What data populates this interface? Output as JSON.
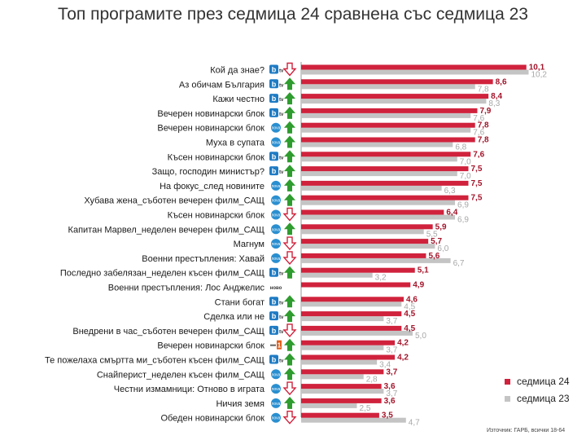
{
  "chart_data": {
    "type": "bar",
    "orientation": "horizontal",
    "title": "Топ програмите през седмица 24 сравнена със седмица 23",
    "series": [
      {
        "name": "седмица 24",
        "color": "#d0223c",
        "values": [
          10.1,
          8.6,
          8.4,
          7.9,
          7.8,
          7.8,
          7.6,
          7.5,
          7.5,
          7.5,
          6.4,
          5.9,
          5.7,
          5.6,
          5.1,
          4.9,
          4.6,
          4.5,
          4.5,
          4.2,
          4.2,
          3.7,
          3.6,
          3.6,
          3.5
        ]
      },
      {
        "name": "седмица 23",
        "color": "#c4c4c4",
        "values": [
          10.2,
          7.8,
          8.3,
          7.6,
          7.6,
          6.8,
          7.0,
          7.0,
          6.3,
          6.9,
          6.9,
          5.5,
          6.0,
          6.7,
          3.2,
          null,
          4.5,
          3.7,
          5.0,
          3.7,
          3.4,
          2.8,
          3.7,
          2.5,
          4.7
        ]
      }
    ],
    "labels_24": [
      "10,1",
      "8,6",
      "8,4",
      "7,9",
      "7,8",
      "7,8",
      "7,6",
      "7,5",
      "7,5",
      "7,5",
      "6,4",
      "5,9",
      "5,7",
      "5,6",
      "5,1",
      "4,9",
      "4,6",
      "4,5",
      "4,5",
      "4,2",
      "4,2",
      "3,7",
      "3,6",
      "3,6",
      "3,5"
    ],
    "labels_23": [
      "10,2",
      "7,8",
      "8,3",
      "7,6",
      "7,6",
      "6,8",
      "7,0",
      "7,0",
      "6,3",
      "6,9",
      "6,9",
      "5,5",
      "6,0",
      "6,7",
      "3,2",
      "",
      "4,5",
      "3,7",
      "5,0",
      "3,7",
      "3,4",
      "2,8",
      "3,7",
      "2,5",
      "4,7"
    ],
    "categories": [
      "Кой да знае?",
      "Аз обичам България",
      "Кажи честно",
      "Вечерен новинарски блок",
      "Вечерен новинарски блок",
      "Муха в супата",
      "Късен новинарски блок",
      "Защо, господин министър?",
      "На фокус_след новините",
      "Хубава жена_съботен вечерен филм_САЩ",
      "Късен новинарски блок",
      "Капитан Марвел_неделен вечерен филм_САЩ",
      "Магнум",
      "Военни престъпления: Хавай",
      "Последно забелязан_неделен късен филм_САЩ",
      "Военни престъпления: Лос Анджелис",
      "Стани богат",
      "Сделка или не",
      "Внедрени в час_съботен вечерен филм_САЩ",
      "Вечерен новинарски блок",
      "Те пожелаха смъртта ми_съботен късен филм_САЩ",
      "Снайперист_неделен късен филм_САЩ",
      "Честни измамници: Отново в играта",
      "Ничия земя",
      "Обеден новинарски блок"
    ],
    "channel_icons": [
      "btv",
      "btv",
      "btv",
      "btv",
      "nova",
      "nova",
      "btv",
      "btv",
      "nova",
      "nova",
      "nova",
      "nova",
      "nova",
      "nova",
      "btv",
      "novo",
      "btv",
      "btv",
      "btv",
      "bnt1",
      "btv",
      "nova",
      "nova",
      "nova",
      "nova"
    ],
    "trend_icons": [
      "down",
      "up",
      "up",
      "up",
      "up",
      "up",
      "up",
      "up",
      "up",
      "up",
      "down",
      "up",
      "down",
      "down",
      "up",
      "none",
      "up",
      "up",
      "down",
      "up",
      "up",
      "up",
      "down",
      "up",
      "down"
    ],
    "xlim": [
      0,
      10.2
    ],
    "grid": false,
    "legend_position": "bottom-right"
  },
  "icon_text": {
    "btv": "b",
    "btv_sub": "tv",
    "nova": "nova",
    "novo": "ново",
    "bnt1": "1"
  },
  "legend": {
    "w24": "седмица 24",
    "w23": "седмица 23"
  },
  "source": "Източник: ГАРБ, всички 18-64",
  "colors": {
    "red": "#d0223c",
    "grey": "#c4c4c4",
    "up": "#2e9c2e",
    "down": "#d0223c",
    "btv": "#1e7bc4",
    "nova": "#2a8fd0"
  }
}
